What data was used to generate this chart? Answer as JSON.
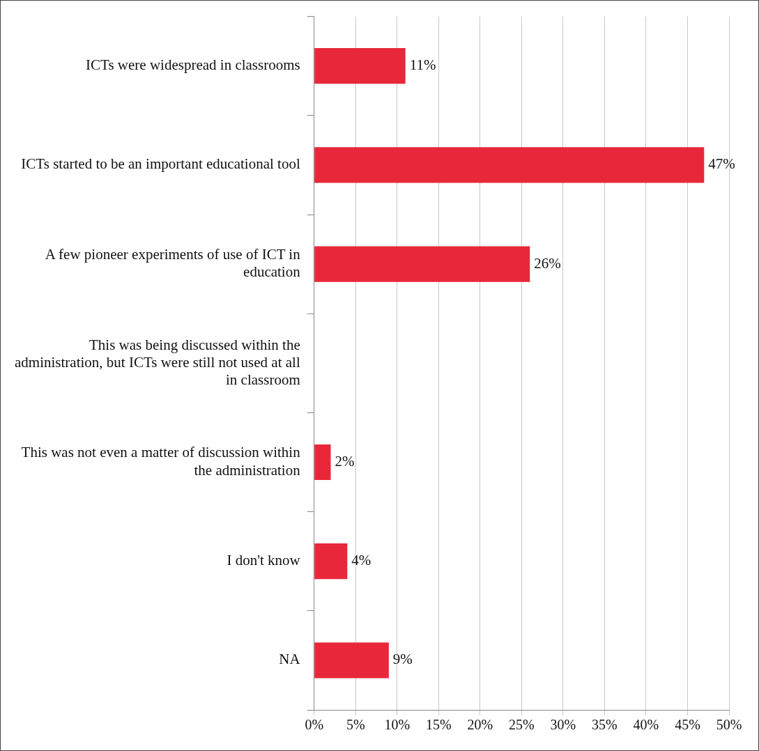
{
  "chart_data": {
    "type": "bar",
    "orientation": "horizontal",
    "categories": [
      "ICTs were widespread in classrooms",
      "ICTs started to be an important educational tool",
      "A few pioneer experiments of use of ICT in education",
      "This was being discussed within the administration, but ICTs were still not used at all in classroom",
      "This was not even a matter of discussion within the administration",
      "I don't know",
      "NA"
    ],
    "values": [
      11,
      47,
      26,
      null,
      2,
      4,
      9
    ],
    "value_labels": [
      "11%",
      "47%",
      "26%",
      null,
      "2%",
      "4%",
      "9%"
    ],
    "color": "#e8283a",
    "xlim": [
      0,
      50
    ],
    "xticks": [
      {
        "value": 0,
        "label": "0%"
      },
      {
        "value": 5,
        "label": "5%"
      },
      {
        "value": 10,
        "label": "10%"
      },
      {
        "value": 15,
        "label": "15%"
      },
      {
        "value": 20,
        "label": "20%"
      },
      {
        "value": 25,
        "label": "25%"
      },
      {
        "value": 30,
        "label": "30%"
      },
      {
        "value": 35,
        "label": "35%"
      },
      {
        "value": 40,
        "label": "40%"
      },
      {
        "value": 45,
        "label": "45%"
      },
      {
        "value": 50,
        "label": "50%"
      }
    ],
    "grid": "x"
  }
}
